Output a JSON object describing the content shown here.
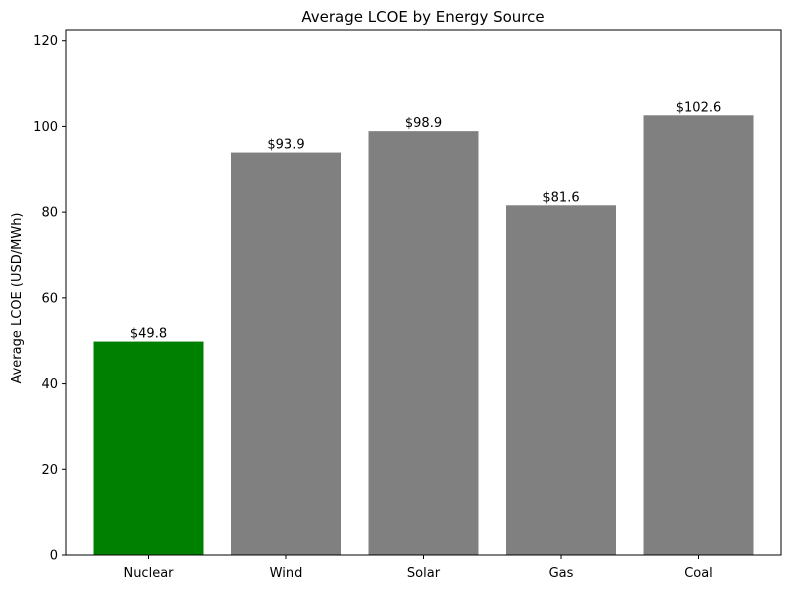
{
  "chart_data": {
    "type": "bar",
    "title": "Average LCOE by Energy Source",
    "xlabel": "",
    "ylabel": "Average LCOE (USD/MWh)",
    "categories": [
      "Nuclear",
      "Wind",
      "Solar",
      "Gas",
      "Coal"
    ],
    "values": [
      49.8,
      93.9,
      98.9,
      81.6,
      102.6
    ],
    "value_labels": [
      "$49.8",
      "$93.9",
      "$98.9",
      "$81.6",
      "$102.6"
    ],
    "bar_colors": [
      "#008000",
      "#808080",
      "#808080",
      "#808080",
      "#808080"
    ],
    "ylim": [
      0,
      122.5
    ],
    "yticks": [
      0,
      20,
      40,
      60,
      80,
      100,
      120
    ],
    "ytick_labels": [
      "0",
      "20",
      "40",
      "60",
      "80",
      "100",
      "120"
    ],
    "grid": false,
    "legend": "none"
  }
}
